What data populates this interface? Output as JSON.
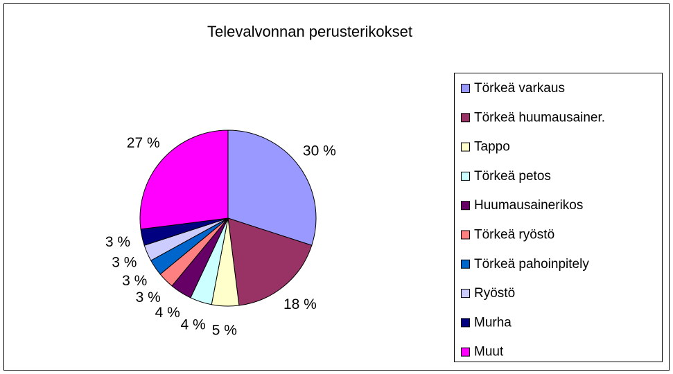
{
  "chart_data": {
    "type": "pie",
    "title": "Televalvonnan perusterikokset",
    "categories": [
      "Törkeä varkaus",
      "Törkeä huumausainer.",
      "Tappo",
      "Törkeä petos",
      "Huumausainerikos",
      "Törkeä ryöstö",
      "Törkeä pahoinpitely",
      "Ryöstö",
      "Murha",
      "Muut"
    ],
    "values": [
      30,
      18,
      5,
      4,
      4,
      3,
      3,
      3,
      3,
      27
    ],
    "value_labels": [
      "30 %",
      "18 %",
      "5 %",
      "4 %",
      "4 %",
      "3 %",
      "3 %",
      "3 %",
      "3 %",
      "27 %"
    ],
    "colors": [
      "#9999ff",
      "#993366",
      "#ffffcc",
      "#ccffff",
      "#660066",
      "#ff8080",
      "#0066cc",
      "#ccccff",
      "#000080",
      "#ff00ff"
    ],
    "legend": "right"
  }
}
